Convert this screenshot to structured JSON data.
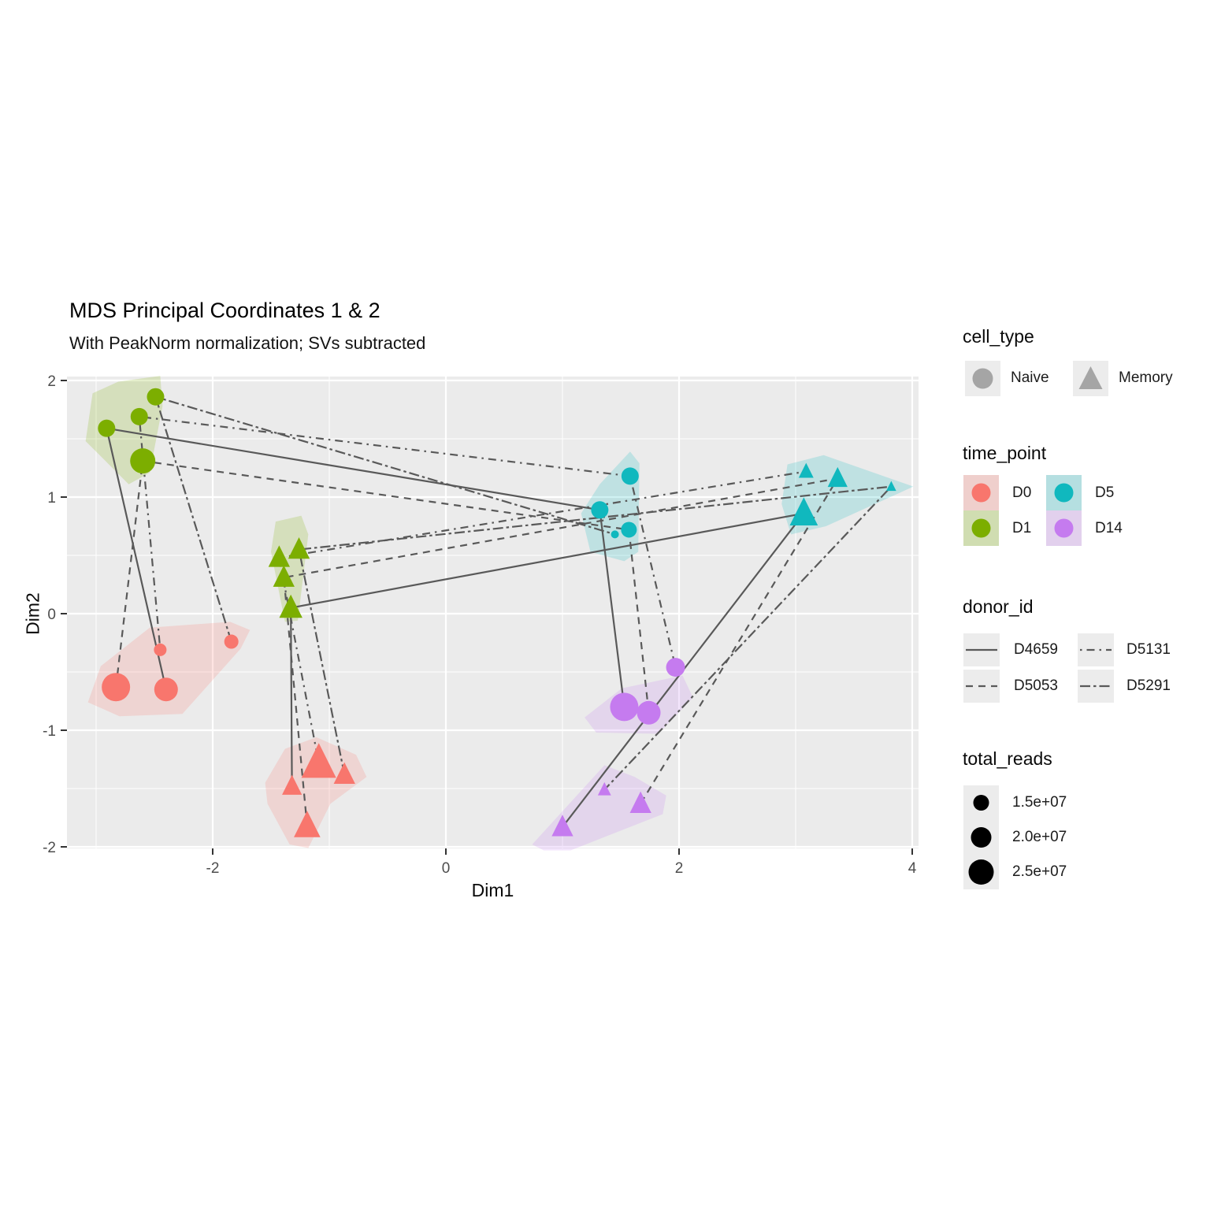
{
  "title": "MDS Principal Coordinates 1 & 2",
  "subtitle": "With PeakNorm normalization; SVs subtracted",
  "chart_data": {
    "type": "scatter",
    "xlabel": "Dim1",
    "ylabel": "Dim2",
    "xlim": [
      -3.25,
      4.06
    ],
    "ylim": [
      -2.03,
      2.03
    ],
    "x_ticks": [
      -2,
      0,
      2,
      4
    ],
    "x_tick_labels": [
      "-2",
      "0",
      "2",
      "4"
    ],
    "x_minor_ticks": [
      -3,
      -1,
      1,
      3
    ],
    "y_ticks": [
      2,
      1,
      0,
      -1,
      -2
    ],
    "y_tick_labels": [
      "2",
      "1",
      "0",
      "-1",
      "-2"
    ],
    "y_minor_ticks": [
      1.5,
      0.5,
      -0.5,
      -1.5
    ],
    "grid": true,
    "panel_bg": "#EBEBEB",
    "grid_color": "#FFFFFF",
    "line_color": "#595959",
    "time_colors": {
      "D0": "#F8766D",
      "D1": "#7CAE00",
      "D5": "#10B8BE",
      "D14": "#C57BEF"
    },
    "time_order": [
      "D0",
      "D1",
      "D5",
      "D14"
    ],
    "donor_linetypes": {
      "D4659": "solid",
      "D5053": "dashed",
      "D5131": "dotdash",
      "D5291": "twodash"
    },
    "points": [
      {
        "donor": "D5053",
        "cell": "Naive",
        "time": "D0",
        "x": -2.83,
        "y": -0.63,
        "size": 18
      },
      {
        "donor": "D4659",
        "cell": "Naive",
        "time": "D0",
        "x": -2.4,
        "y": -0.65,
        "size": 15
      },
      {
        "donor": "D5131",
        "cell": "Naive",
        "time": "D0",
        "x": -2.45,
        "y": -0.31,
        "size": 8
      },
      {
        "donor": "D5291",
        "cell": "Naive",
        "time": "D0",
        "x": -1.84,
        "y": -0.24,
        "size": 9
      },
      {
        "donor": "D5291",
        "cell": "Naive",
        "time": "D1",
        "x": -2.49,
        "y": 1.86,
        "size": 11
      },
      {
        "donor": "D5131",
        "cell": "Naive",
        "time": "D1",
        "x": -2.63,
        "y": 1.69,
        "size": 11
      },
      {
        "donor": "D4659",
        "cell": "Naive",
        "time": "D1",
        "x": -2.91,
        "y": 1.59,
        "size": 11
      },
      {
        "donor": "D5053",
        "cell": "Naive",
        "time": "D1",
        "x": -2.6,
        "y": 1.31,
        "size": 16
      },
      {
        "donor": "D5131",
        "cell": "Naive",
        "time": "D5",
        "x": 1.58,
        "y": 1.18,
        "size": 11
      },
      {
        "donor": "D4659",
        "cell": "Naive",
        "time": "D5",
        "x": 1.32,
        "y": 0.89,
        "size": 11
      },
      {
        "donor": "D5053",
        "cell": "Naive",
        "time": "D5",
        "x": 1.57,
        "y": 0.72,
        "size": 10
      },
      {
        "donor": "D5291",
        "cell": "Naive",
        "time": "D5",
        "x": 1.45,
        "y": 0.68,
        "size": 5
      },
      {
        "donor": "D5131",
        "cell": "Naive",
        "time": "D14",
        "x": 1.97,
        "y": -0.46,
        "size": 12
      },
      {
        "donor": "D4659",
        "cell": "Naive",
        "time": "D14",
        "x": 1.53,
        "y": -0.8,
        "size": 18
      },
      {
        "donor": "D5053",
        "cell": "Naive",
        "time": "D14",
        "x": 1.74,
        "y": -0.85,
        "size": 15
      },
      {
        "donor": "D5131",
        "cell": "Memory",
        "time": "D0",
        "x": -1.09,
        "y": -1.28,
        "size": 21
      },
      {
        "donor": "D5291",
        "cell": "Memory",
        "time": "D0",
        "x": -0.87,
        "y": -1.38,
        "size": 13
      },
      {
        "donor": "D4659",
        "cell": "Memory",
        "time": "D0",
        "x": -1.32,
        "y": -1.48,
        "size": 12
      },
      {
        "donor": "D5053",
        "cell": "Memory",
        "time": "D0",
        "x": -1.19,
        "y": -1.82,
        "size": 16
      },
      {
        "donor": "D5291",
        "cell": "Memory",
        "time": "D1",
        "x": -1.26,
        "y": 0.55,
        "size": 13
      },
      {
        "donor": "D5131",
        "cell": "Memory",
        "time": "D1",
        "x": -1.43,
        "y": 0.48,
        "size": 13
      },
      {
        "donor": "D5053",
        "cell": "Memory",
        "time": "D1",
        "x": -1.39,
        "y": 0.31,
        "size": 13
      },
      {
        "donor": "D4659",
        "cell": "Memory",
        "time": "D1",
        "x": -1.33,
        "y": 0.05,
        "size": 14
      },
      {
        "donor": "D5131",
        "cell": "Memory",
        "time": "D5",
        "x": 3.09,
        "y": 1.22,
        "size": 9
      },
      {
        "donor": "D5053",
        "cell": "Memory",
        "time": "D5",
        "x": 3.36,
        "y": 1.16,
        "size": 12
      },
      {
        "donor": "D5291",
        "cell": "Memory",
        "time": "D5",
        "x": 3.82,
        "y": 1.09,
        "size": 6
      },
      {
        "donor": "D4659",
        "cell": "Memory",
        "time": "D5",
        "x": 3.07,
        "y": 0.86,
        "size": 17
      },
      {
        "donor": "D5291",
        "cell": "Memory",
        "time": "D14",
        "x": 1.36,
        "y": -1.51,
        "size": 8
      },
      {
        "donor": "D5053",
        "cell": "Memory",
        "time": "D14",
        "x": 1.67,
        "y": -1.63,
        "size": 13
      },
      {
        "donor": "D4659",
        "cell": "Memory",
        "time": "D14",
        "x": 1.0,
        "y": -1.83,
        "size": 13
      }
    ],
    "hulls": [
      {
        "time": "D1",
        "cell": "Naive",
        "pts": [
          [
            -3.09,
            1.48
          ],
          [
            -3.03,
            1.89
          ],
          [
            -2.81,
            1.99
          ],
          [
            -2.45,
            2.04
          ],
          [
            -2.43,
            1.78
          ],
          [
            -2.54,
            1.21
          ],
          [
            -2.72,
            1.11
          ]
        ]
      },
      {
        "time": "D0",
        "cell": "Naive",
        "pts": [
          [
            -3.07,
            -0.76
          ],
          [
            -2.96,
            -0.45
          ],
          [
            -2.54,
            -0.12
          ],
          [
            -1.85,
            -0.07
          ],
          [
            -1.68,
            -0.14
          ],
          [
            -1.76,
            -0.3
          ],
          [
            -2.26,
            -0.86
          ],
          [
            -2.8,
            -0.88
          ]
        ]
      },
      {
        "time": "D1",
        "cell": "Memory",
        "pts": [
          [
            -1.5,
            0.53
          ],
          [
            -1.46,
            0.79
          ],
          [
            -1.24,
            0.84
          ],
          [
            -1.18,
            0.68
          ],
          [
            -1.27,
            -0.06
          ],
          [
            -1.38,
            -0.07
          ]
        ]
      },
      {
        "time": "D0",
        "cell": "Memory",
        "pts": [
          [
            -1.55,
            -1.45
          ],
          [
            -1.38,
            -1.16
          ],
          [
            -1.11,
            -1.06
          ],
          [
            -0.77,
            -1.21
          ],
          [
            -0.68,
            -1.4
          ],
          [
            -0.99,
            -1.63
          ],
          [
            -1.18,
            -2.01
          ],
          [
            -1.34,
            -1.98
          ],
          [
            -1.53,
            -1.63
          ]
        ]
      },
      {
        "time": "D5",
        "cell": "Naive",
        "pts": [
          [
            1.16,
            0.86
          ],
          [
            1.32,
            1.11
          ],
          [
            1.58,
            1.39
          ],
          [
            1.66,
            1.29
          ],
          [
            1.65,
            0.53
          ],
          [
            1.53,
            0.45
          ],
          [
            1.24,
            0.53
          ]
        ]
      },
      {
        "time": "D5",
        "cell": "Memory",
        "pts": [
          [
            2.88,
            0.94
          ],
          [
            2.93,
            1.28
          ],
          [
            3.24,
            1.36
          ],
          [
            4.01,
            1.09
          ],
          [
            3.26,
            0.75
          ],
          [
            2.96,
            0.68
          ]
        ]
      },
      {
        "time": "D14",
        "cell": "Naive",
        "pts": [
          [
            2.03,
            -0.53
          ],
          [
            2.12,
            -0.72
          ],
          [
            1.82,
            -1.03
          ],
          [
            1.29,
            -1.02
          ],
          [
            1.19,
            -0.89
          ],
          [
            1.51,
            -0.64
          ]
        ]
      },
      {
        "time": "D14",
        "cell": "Memory",
        "pts": [
          [
            0.74,
            -1.98
          ],
          [
            1.36,
            -1.3
          ],
          [
            1.62,
            -1.4
          ],
          [
            1.89,
            -1.56
          ],
          [
            1.86,
            -1.72
          ],
          [
            1.07,
            -2.03
          ],
          [
            0.84,
            -2.03
          ]
        ]
      }
    ]
  },
  "legend": {
    "cell_type": {
      "title": "cell_type",
      "items": [
        {
          "label": "Naive",
          "shape": "circle"
        },
        {
          "label": "Memory",
          "shape": "triangle"
        }
      ],
      "glyph_color": "#A5A5A5"
    },
    "time_point": {
      "title": "time_point",
      "items": [
        {
          "label": "D0"
        },
        {
          "label": "D5"
        },
        {
          "label": "D1"
        },
        {
          "label": "D14"
        }
      ]
    },
    "donor_id": {
      "title": "donor_id",
      "items": [
        {
          "label": "D4659",
          "linetype": "solid"
        },
        {
          "label": "D5131",
          "linetype": "dotdash"
        },
        {
          "label": "D5053",
          "linetype": "dashed"
        },
        {
          "label": "D5291",
          "linetype": "twodash"
        }
      ]
    },
    "total_reads": {
      "title": "total_reads",
      "items": [
        {
          "label": "1.5e+07",
          "radius": 10
        },
        {
          "label": "2.0e+07",
          "radius": 13
        },
        {
          "label": "2.5e+07",
          "radius": 16
        }
      ],
      "glyph_color": "#000000"
    }
  }
}
